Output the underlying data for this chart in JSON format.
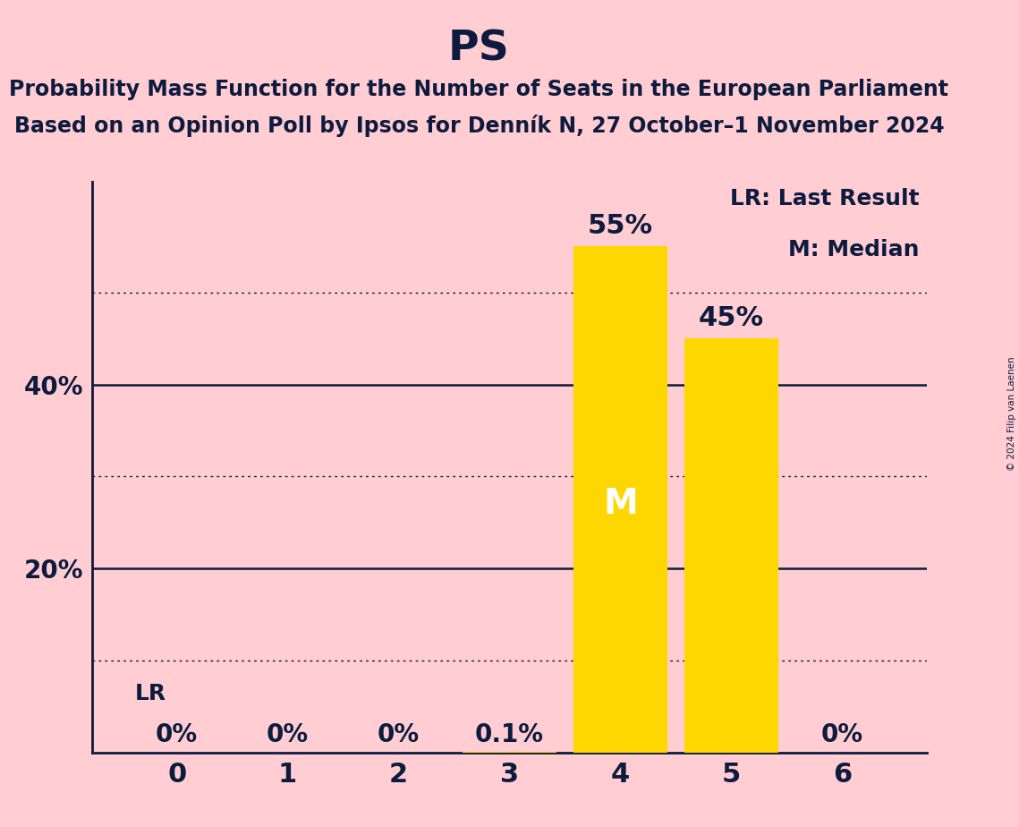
{
  "title": "PS",
  "subtitle_line1": "Probability Mass Function for the Number of Seats in the European Parliament",
  "subtitle_line2": "Based on an Opinion Poll by Ipsos for Denník N, 27 October–1 November 2024",
  "categories": [
    0,
    1,
    2,
    3,
    4,
    5,
    6
  ],
  "values": [
    0.0,
    0.0,
    0.0,
    0.001,
    0.55,
    0.45,
    0.0
  ],
  "bar_color": "#FFD700",
  "background_color": "#FFCDD2",
  "text_color": "#0d1b3e",
  "label_color_above": "#0d1b3e",
  "label_color_inside": "#ffffff",
  "bar_labels": [
    "0%",
    "0%",
    "0%",
    "0.1%",
    "55%",
    "45%",
    "0%"
  ],
  "median_seat": 4,
  "last_result_seat": 0,
  "median_label": "M",
  "lr_label": "LR",
  "legend_lr": "LR: Last Result",
  "legend_m": "M: Median",
  "ylim": [
    0,
    0.62
  ],
  "copyright": "© 2024 Filip van Laenen",
  "title_fontsize": 34,
  "subtitle_fontsize": 17,
  "bar_label_fontsize": 22,
  "legend_fontsize": 18,
  "ytick_fontsize": 20,
  "xtick_fontsize": 22,
  "lr_fontsize": 18,
  "median_label_fontsize": 28
}
